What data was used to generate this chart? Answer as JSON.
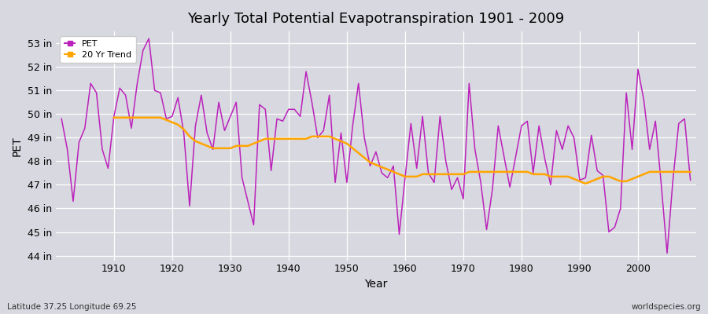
{
  "title": "Yearly Total Potential Evapotranspiration 1901 - 2009",
  "xlabel": "Year",
  "ylabel": "PET",
  "caption_left": "Latitude 37.25 Longitude 69.25",
  "caption_right": "worldspecies.org",
  "bg_color": "#d8d8e0",
  "plot_bg_color": "#d8d8e0",
  "pet_color": "#bb22bb",
  "trend_color": "#ffa500",
  "ylim": [
    43.8,
    53.5
  ],
  "yticks": [
    44,
    45,
    46,
    47,
    48,
    49,
    50,
    51,
    52,
    53
  ],
  "years": [
    1901,
    1902,
    1903,
    1904,
    1905,
    1906,
    1907,
    1908,
    1909,
    1910,
    1911,
    1912,
    1913,
    1914,
    1915,
    1916,
    1917,
    1918,
    1919,
    1920,
    1921,
    1922,
    1923,
    1924,
    1925,
    1926,
    1927,
    1928,
    1929,
    1930,
    1931,
    1932,
    1933,
    1934,
    1935,
    1936,
    1937,
    1938,
    1939,
    1940,
    1941,
    1942,
    1943,
    1944,
    1945,
    1946,
    1947,
    1948,
    1949,
    1950,
    1951,
    1952,
    1953,
    1954,
    1955,
    1956,
    1957,
    1958,
    1959,
    1960,
    1961,
    1962,
    1963,
    1964,
    1965,
    1966,
    1967,
    1968,
    1969,
    1970,
    1971,
    1972,
    1973,
    1974,
    1975,
    1976,
    1977,
    1978,
    1979,
    1980,
    1981,
    1982,
    1983,
    1984,
    1985,
    1986,
    1987,
    1988,
    1989,
    1990,
    1991,
    1992,
    1993,
    1994,
    1995,
    1996,
    1997,
    1998,
    1999,
    2000,
    2001,
    2002,
    2003,
    2004,
    2005,
    2006,
    2007,
    2008,
    2009
  ],
  "pet_values": [
    49.8,
    48.5,
    46.3,
    48.8,
    49.4,
    51.3,
    50.9,
    48.5,
    47.7,
    49.9,
    51.1,
    50.8,
    49.4,
    51.3,
    52.7,
    53.2,
    51.0,
    50.9,
    49.8,
    49.9,
    50.7,
    49.2,
    46.1,
    49.5,
    50.8,
    49.2,
    48.5,
    50.5,
    49.3,
    49.9,
    50.5,
    47.3,
    46.3,
    45.3,
    50.4,
    50.2,
    47.6,
    49.8,
    49.7,
    50.2,
    50.2,
    49.9,
    51.8,
    50.5,
    49.0,
    49.3,
    50.8,
    47.1,
    49.2,
    47.1,
    49.5,
    51.3,
    49.0,
    47.8,
    48.4,
    47.5,
    47.3,
    47.8,
    44.9,
    47.3,
    49.6,
    47.7,
    49.9,
    47.5,
    47.1,
    49.9,
    48.0,
    46.8,
    47.3,
    46.4,
    51.3,
    48.5,
    47.1,
    45.1,
    46.8,
    49.5,
    48.2,
    46.9,
    48.2,
    49.5,
    49.7,
    47.5,
    49.5,
    48.1,
    47.0,
    49.3,
    48.5,
    49.5,
    49.0,
    47.2,
    47.3,
    49.1,
    47.6,
    47.4,
    45.0,
    45.2,
    46.0,
    50.9,
    48.5,
    51.9,
    50.6,
    48.5,
    49.7,
    47.0,
    44.1,
    47.2,
    49.6,
    49.8,
    47.2
  ],
  "trend_values": [
    null,
    null,
    null,
    null,
    null,
    null,
    null,
    null,
    null,
    49.85,
    49.85,
    49.85,
    49.85,
    49.85,
    49.85,
    49.85,
    49.85,
    49.85,
    49.75,
    49.65,
    49.55,
    49.35,
    49.05,
    48.85,
    48.75,
    48.65,
    48.55,
    48.55,
    48.55,
    48.55,
    48.65,
    48.65,
    48.65,
    48.75,
    48.85,
    48.95,
    48.95,
    48.95,
    48.95,
    48.95,
    48.95,
    48.95,
    48.95,
    49.05,
    49.05,
    49.05,
    49.05,
    48.95,
    48.85,
    48.75,
    48.55,
    48.35,
    48.15,
    47.95,
    47.85,
    47.75,
    47.65,
    47.55,
    47.45,
    47.35,
    47.35,
    47.35,
    47.45,
    47.45,
    47.45,
    47.45,
    47.45,
    47.45,
    47.45,
    47.45,
    47.55,
    47.55,
    47.55,
    47.55,
    47.55,
    47.55,
    47.55,
    47.55,
    47.55,
    47.55,
    47.55,
    47.45,
    47.45,
    47.45,
    47.35,
    47.35,
    47.35,
    47.35,
    47.25,
    47.15,
    47.05,
    47.15,
    47.25,
    47.35,
    47.35,
    47.25,
    47.15,
    47.15,
    47.25,
    47.35,
    47.45,
    47.55,
    47.55,
    47.55,
    47.55,
    47.55,
    47.55,
    47.55,
    47.55
  ]
}
